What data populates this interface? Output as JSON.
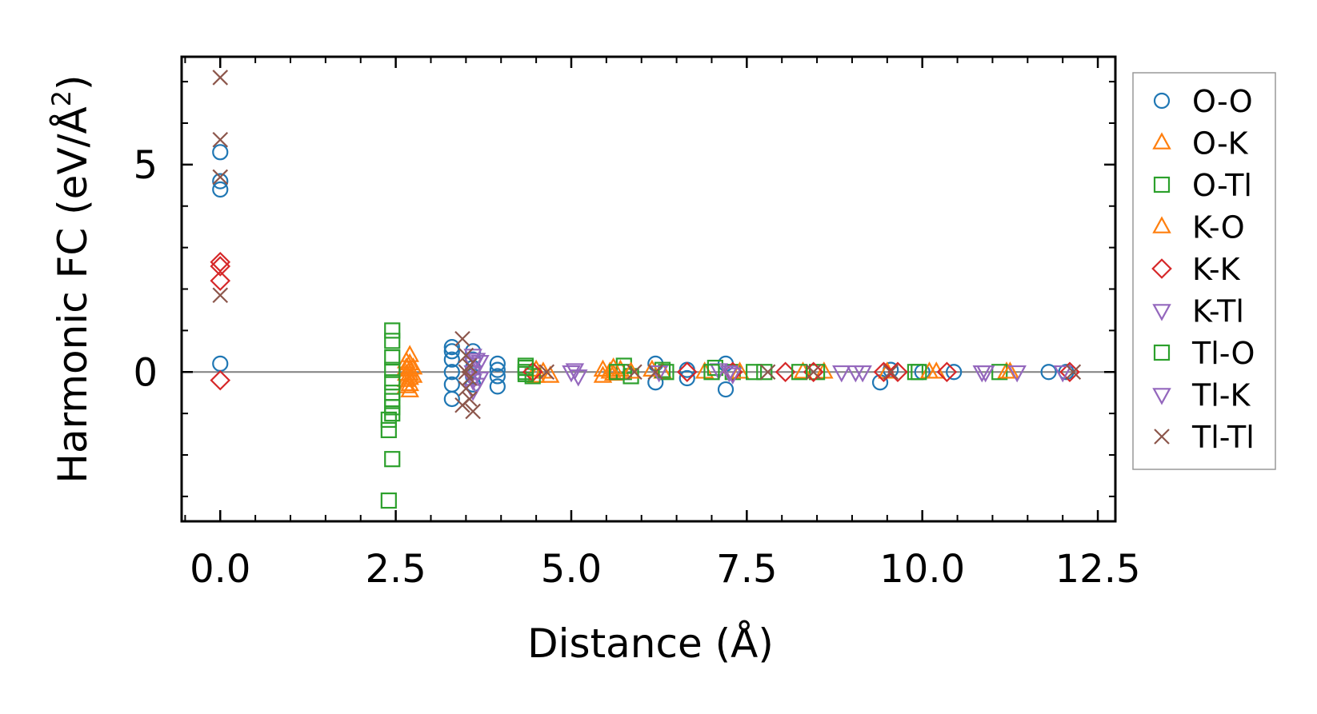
{
  "chart_data": {
    "type": "scatter",
    "title": "",
    "xlabel": "Distance (Å)",
    "ylabel_main": "Harmonic FC (eV/Å",
    "ylabel_sup": "2",
    "ylabel_close": ")",
    "xlim": [
      -0.55,
      12.75
    ],
    "ylim": [
      -3.6,
      7.6
    ],
    "xticks": [
      0.0,
      2.5,
      5.0,
      7.5,
      10.0,
      12.5
    ],
    "xtick_labels": [
      "0.0",
      "2.5",
      "5.0",
      "7.5",
      "10.0",
      "12.5"
    ],
    "xminor_step": 0.5,
    "yticks": [
      0,
      5
    ],
    "ytick_labels": [
      "0",
      "5"
    ],
    "yminor_step": 1,
    "zero_line": true,
    "legend_position": "right",
    "series": [
      {
        "name": "O-O",
        "marker": "circle",
        "color": "#1f77b4",
        "points": [
          [
            0,
            5.3
          ],
          [
            0,
            4.6
          ],
          [
            0,
            4.4
          ],
          [
            0,
            0.2
          ],
          [
            3.3,
            0.6
          ],
          [
            3.3,
            0.5
          ],
          [
            3.3,
            0.3
          ],
          [
            3.3,
            0.0
          ],
          [
            3.3,
            -0.3
          ],
          [
            3.3,
            -0.65
          ],
          [
            3.6,
            0.5
          ],
          [
            3.6,
            0.3
          ],
          [
            3.6,
            0.1
          ],
          [
            3.6,
            -0.1
          ],
          [
            3.6,
            -0.3
          ],
          [
            3.95,
            0.2
          ],
          [
            3.95,
            0.05
          ],
          [
            3.95,
            -0.1
          ],
          [
            3.95,
            -0.35
          ],
          [
            6.2,
            0.2
          ],
          [
            6.2,
            -0.25
          ],
          [
            6.65,
            0.05
          ],
          [
            6.65,
            -0.15
          ],
          [
            7.2,
            0.2
          ],
          [
            7.2,
            -0.42
          ],
          [
            9.4,
            -0.25
          ],
          [
            9.55,
            0.05
          ],
          [
            10.0,
            0.0
          ],
          [
            10.45,
            0.0
          ],
          [
            11.8,
            0.0
          ],
          [
            12.05,
            0.0
          ]
        ]
      },
      {
        "name": "O-K",
        "marker": "triangle-up",
        "color": "#ff7f0e",
        "points": [
          [
            2.65,
            0.25
          ],
          [
            2.65,
            0.1
          ],
          [
            2.65,
            -0.05
          ],
          [
            2.65,
            -0.2
          ],
          [
            2.65,
            -0.35
          ],
          [
            2.7,
            0.05
          ],
          [
            2.7,
            -0.15
          ],
          [
            2.75,
            0.1
          ],
          [
            2.75,
            -0.1
          ],
          [
            4.5,
            0.05
          ],
          [
            4.5,
            -0.1
          ],
          [
            4.6,
            0.0
          ],
          [
            4.7,
            -0.1
          ],
          [
            5.45,
            0.05
          ],
          [
            5.45,
            -0.1
          ],
          [
            5.55,
            0.0
          ],
          [
            5.7,
            0.05
          ],
          [
            6.3,
            0.0
          ],
          [
            6.9,
            0.0
          ],
          [
            8.6,
            0.0
          ],
          [
            9.5,
            0.0
          ],
          [
            10.2,
            0.0
          ],
          [
            11.2,
            0.0
          ]
        ]
      },
      {
        "name": "O-Tl",
        "marker": "square",
        "color": "#2ca02c",
        "points": [
          [
            2.45,
            1.0
          ],
          [
            2.45,
            0.75
          ],
          [
            2.45,
            0.35
          ],
          [
            2.45,
            0.05
          ],
          [
            2.45,
            -0.25
          ],
          [
            2.45,
            -0.5
          ],
          [
            2.45,
            -0.7
          ],
          [
            2.45,
            -0.85
          ],
          [
            2.45,
            -1.0
          ],
          [
            2.4,
            -1.15
          ],
          [
            2.4,
            -1.4
          ],
          [
            2.45,
            -2.1
          ],
          [
            2.4,
            -3.1
          ],
          [
            4.35,
            0.15
          ],
          [
            4.35,
            0.0
          ],
          [
            4.45,
            -0.1
          ],
          [
            5.75,
            0.15
          ],
          [
            5.75,
            0.0
          ],
          [
            5.85,
            -0.1
          ],
          [
            6.3,
            0.05
          ],
          [
            7.05,
            0.1
          ],
          [
            7.3,
            0.0
          ],
          [
            7.75,
            0.0
          ],
          [
            8.5,
            0.0
          ],
          [
            9.9,
            0.0
          ],
          [
            11.1,
            0.0
          ]
        ]
      },
      {
        "name": "K-O",
        "marker": "triangle-up",
        "color": "#ff7f0e",
        "points": [
          [
            2.7,
            0.4
          ],
          [
            2.7,
            0.2
          ],
          [
            2.7,
            -0.05
          ],
          [
            2.7,
            -0.3
          ],
          [
            2.7,
            -0.45
          ],
          [
            5.6,
            0.1
          ],
          [
            5.6,
            -0.05
          ],
          [
            5.85,
            0.0
          ],
          [
            6.15,
            0.05
          ],
          [
            7.4,
            0.0
          ],
          [
            8.3,
            0.0
          ],
          [
            10.1,
            0.0
          ],
          [
            11.25,
            0.0
          ]
        ]
      },
      {
        "name": "K-K",
        "marker": "diamond",
        "color": "#d62728",
        "points": [
          [
            0,
            2.65
          ],
          [
            0,
            2.55
          ],
          [
            0,
            2.2
          ],
          [
            0,
            -0.2
          ],
          [
            4.45,
            0.0
          ],
          [
            6.65,
            0.0
          ],
          [
            7.3,
            0.0
          ],
          [
            8.05,
            0.0
          ],
          [
            8.45,
            0.0
          ],
          [
            9.45,
            0.0
          ],
          [
            9.65,
            0.0
          ],
          [
            10.35,
            0.0
          ],
          [
            12.1,
            0.0
          ]
        ]
      },
      {
        "name": "K-Tl",
        "marker": "triangle-down",
        "color": "#9467bd",
        "points": [
          [
            3.6,
            0.4
          ],
          [
            3.6,
            0.2
          ],
          [
            3.6,
            0.0
          ],
          [
            3.6,
            -0.2
          ],
          [
            3.6,
            -0.45
          ],
          [
            3.7,
            0.25
          ],
          [
            3.7,
            -0.15
          ],
          [
            5.0,
            0.0
          ],
          [
            5.1,
            -0.1
          ],
          [
            7.1,
            0.05
          ],
          [
            7.3,
            -0.05
          ],
          [
            8.85,
            0.0
          ],
          [
            9.15,
            0.0
          ],
          [
            10.85,
            0.0
          ],
          [
            11.35,
            0.0
          ]
        ]
      },
      {
        "name": "Tl-O",
        "marker": "square",
        "color": "#2ca02c",
        "points": [
          [
            4.35,
            0.1
          ],
          [
            4.35,
            -0.05
          ],
          [
            5.65,
            0.0
          ],
          [
            6.35,
            0.0
          ],
          [
            7.0,
            0.0
          ],
          [
            7.6,
            0.0
          ],
          [
            8.25,
            0.0
          ],
          [
            9.95,
            0.0
          ]
        ]
      },
      {
        "name": "Tl-K",
        "marker": "triangle-down",
        "color": "#9467bd",
        "points": [
          [
            3.65,
            0.3
          ],
          [
            3.65,
            -0.3
          ],
          [
            5.05,
            0.05
          ],
          [
            6.25,
            0.0
          ],
          [
            7.25,
            0.0
          ],
          [
            9.05,
            0.0
          ],
          [
            10.9,
            0.0
          ],
          [
            12.0,
            0.0
          ]
        ]
      },
      {
        "name": "Tl-Tl",
        "marker": "x",
        "color": "#8c564b",
        "points": [
          [
            0,
            7.1
          ],
          [
            0,
            5.6
          ],
          [
            0,
            4.7
          ],
          [
            0,
            1.85
          ],
          [
            3.45,
            0.8
          ],
          [
            3.5,
            0.4
          ],
          [
            3.5,
            0.0
          ],
          [
            3.5,
            -0.4
          ],
          [
            3.45,
            -0.8
          ],
          [
            3.55,
            -0.65
          ],
          [
            3.6,
            -0.95
          ],
          [
            3.55,
            0.15
          ],
          [
            3.55,
            -0.15
          ],
          [
            4.65,
            0.0
          ],
          [
            5.9,
            0.0
          ],
          [
            6.2,
            0.0
          ],
          [
            7.8,
            0.0
          ],
          [
            8.45,
            0.0
          ],
          [
            9.55,
            0.0
          ],
          [
            12.15,
            0.0
          ]
        ]
      }
    ]
  }
}
